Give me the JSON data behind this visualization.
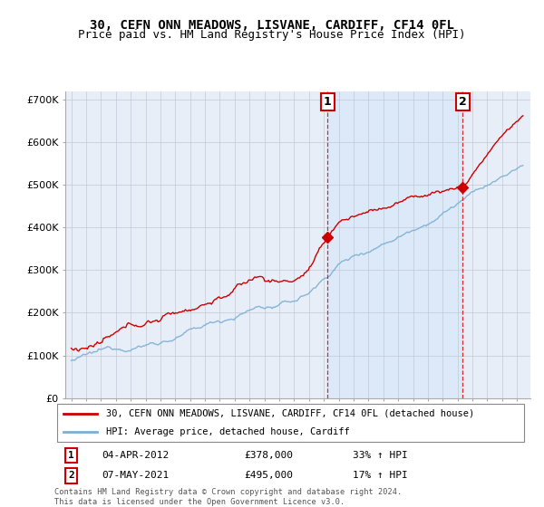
{
  "title": "30, CEFN ONN MEADOWS, LISVANE, CARDIFF, CF14 0FL",
  "subtitle": "Price paid vs. HM Land Registry's House Price Index (HPI)",
  "ylabel_ticks": [
    "£0",
    "£100K",
    "£200K",
    "£300K",
    "£400K",
    "£500K",
    "£600K",
    "£700K"
  ],
  "ytick_values": [
    0,
    100000,
    200000,
    300000,
    400000,
    500000,
    600000,
    700000
  ],
  "ylim": [
    0,
    720000
  ],
  "hpi_color": "#7bafd4",
  "price_color": "#cc0000",
  "marker1_x": 2012.25,
  "marker1_price": 378000,
  "marker1_label": "04-APR-2012",
  "marker1_text": "£378,000",
  "marker1_pct": "33% ↑ HPI",
  "marker2_x": 2021.35,
  "marker2_price": 495000,
  "marker2_label": "07-MAY-2021",
  "marker2_text": "£495,000",
  "marker2_pct": "17% ↑ HPI",
  "legend_line1": "30, CEFN ONN MEADOWS, LISVANE, CARDIFF, CF14 0FL (detached house)",
  "legend_line2": "HPI: Average price, detached house, Cardiff",
  "footnote": "Contains HM Land Registry data © Crown copyright and database right 2024.\nThis data is licensed under the Open Government Licence v3.0.",
  "background_color": "#e8eef8",
  "shaded_color": "#d8e8f8",
  "grid_color": "#c0c8d8",
  "title_fontsize": 10,
  "subtitle_fontsize": 9
}
